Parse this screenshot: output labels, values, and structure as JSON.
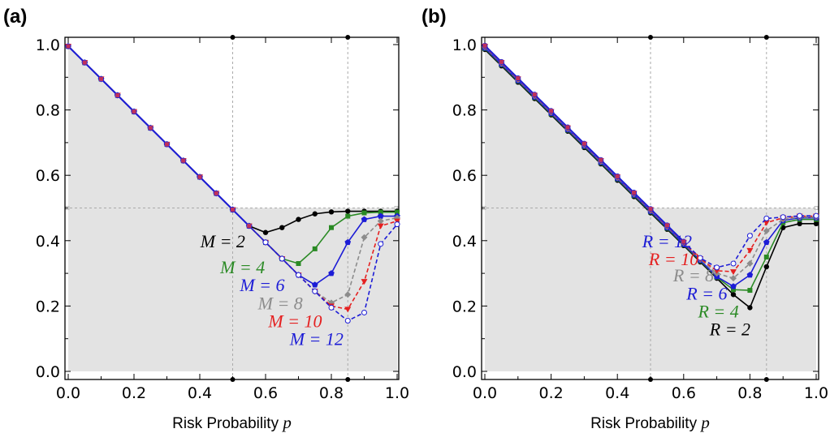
{
  "figure": {
    "panels": [
      "(a)",
      "(b)"
    ]
  },
  "chart_data": [
    {
      "type": "line",
      "panel_label": "(a)",
      "xlabel": "Risk Probability",
      "xlabel_var": "p",
      "ylabel": "",
      "xlim": [
        0,
        1
      ],
      "ylim": [
        0,
        1
      ],
      "x_ticks": [
        "0.0",
        "0.2",
        "0.4",
        "0.6",
        "0.8",
        "1.0"
      ],
      "y_ticks": [
        "0.0",
        "0.2",
        "0.4",
        "0.6",
        "0.8",
        "1.0"
      ],
      "reference_lines": {
        "vertical": [
          0.5,
          0.85
        ],
        "horizontal": [
          0.5
        ]
      },
      "shaded_region": "under y = min(1 - p, 0.5)",
      "colors": {
        "shade": "#e3e3e3",
        "frame": "#000000",
        "guide": "#aaaaaa"
      },
      "x": [
        0.0,
        0.05,
        0.1,
        0.15,
        0.2,
        0.25,
        0.3,
        0.35,
        0.4,
        0.45,
        0.5,
        0.55,
        0.6,
        0.65,
        0.7,
        0.75,
        0.8,
        0.85,
        0.9,
        0.95,
        1.0
      ],
      "series": [
        {
          "name": "M = 2",
          "color": "#000000",
          "dash": "solid",
          "marker": "circle",
          "values": [
            0.995,
            0.945,
            0.895,
            0.845,
            0.795,
            0.745,
            0.695,
            0.645,
            0.595,
            0.545,
            0.495,
            0.445,
            0.425,
            0.44,
            0.465,
            0.482,
            0.488,
            0.49,
            0.49,
            0.49,
            0.49
          ]
        },
        {
          "name": "M = 4",
          "color": "#2a8a24",
          "dash": "solid",
          "marker": "square",
          "values": [
            0.995,
            0.945,
            0.895,
            0.845,
            0.795,
            0.745,
            0.695,
            0.645,
            0.595,
            0.545,
            0.495,
            0.445,
            0.395,
            0.345,
            0.33,
            0.375,
            0.44,
            0.475,
            0.485,
            0.487,
            0.487
          ]
        },
        {
          "name": "M = 6",
          "color": "#1c1cd6",
          "dash": "solid",
          "marker": "pentagon",
          "values": [
            0.995,
            0.945,
            0.895,
            0.845,
            0.795,
            0.745,
            0.695,
            0.645,
            0.595,
            0.545,
            0.495,
            0.445,
            0.395,
            0.345,
            0.295,
            0.265,
            0.3,
            0.395,
            0.465,
            0.475,
            0.475
          ]
        },
        {
          "name": "M = 8",
          "color": "#8c8c8c",
          "dash": "dashed",
          "marker": "diamond",
          "values": [
            0.995,
            0.945,
            0.895,
            0.845,
            0.795,
            0.745,
            0.695,
            0.645,
            0.595,
            0.545,
            0.495,
            0.445,
            0.395,
            0.345,
            0.295,
            0.245,
            0.21,
            0.235,
            0.41,
            0.46,
            0.47
          ]
        },
        {
          "name": "M = 10",
          "color": "#e52020",
          "dash": "dashed",
          "marker": "triangle",
          "values": [
            0.995,
            0.945,
            0.895,
            0.845,
            0.795,
            0.745,
            0.695,
            0.645,
            0.595,
            0.545,
            0.495,
            0.445,
            0.395,
            0.345,
            0.295,
            0.245,
            0.2,
            0.19,
            0.275,
            0.445,
            0.46
          ]
        },
        {
          "name": "M = 12",
          "color": "#1c1cd6",
          "dash": "dashed",
          "marker": "open-circle",
          "values": [
            0.995,
            0.945,
            0.895,
            0.845,
            0.795,
            0.745,
            0.695,
            0.645,
            0.595,
            0.545,
            0.495,
            0.445,
            0.395,
            0.345,
            0.295,
            0.245,
            0.195,
            0.155,
            0.18,
            0.39,
            0.45
          ]
        }
      ],
      "overlay_line": {
        "color": "#1c1cd6",
        "values": [
          0.995,
          0.945,
          0.895,
          0.845,
          0.795,
          0.745,
          0.695,
          0.645,
          0.595,
          0.545,
          0.495,
          0.445
        ]
      },
      "series_labels": [
        {
          "text": "M = 2",
          "color": "#000000",
          "anchor": [
            0.47,
            0.4
          ]
        },
        {
          "text": "M = 4",
          "color": "#2a8a24",
          "anchor": [
            0.53,
            0.32
          ]
        },
        {
          "text": "M = 6",
          "color": "#1c1cd6",
          "anchor": [
            0.59,
            0.265
          ]
        },
        {
          "text": "M = 8",
          "color": "#8c8c8c",
          "anchor": [
            0.645,
            0.21
          ]
        },
        {
          "text": "M = 10",
          "color": "#e52020",
          "anchor": [
            0.69,
            0.155
          ]
        },
        {
          "text": "M = 12",
          "color": "#1c1cd6",
          "anchor": [
            0.755,
            0.1
          ]
        }
      ]
    },
    {
      "type": "line",
      "panel_label": "(b)",
      "xlabel": "Risk Probability",
      "xlabel_var": "p",
      "ylabel": "",
      "xlim": [
        0,
        1
      ],
      "ylim": [
        0,
        1
      ],
      "x_ticks": [
        "0.0",
        "0.2",
        "0.4",
        "0.6",
        "0.8",
        "1.0"
      ],
      "y_ticks": [
        "0.0",
        "0.2",
        "0.4",
        "0.6",
        "0.8",
        "1.0"
      ],
      "reference_lines": {
        "vertical": [
          0.5,
          0.85
        ],
        "horizontal": [
          0.5
        ]
      },
      "shaded_region": "under y = min(1 - p, 0.5)",
      "colors": {
        "shade": "#e3e3e3",
        "frame": "#000000",
        "guide": "#aaaaaa"
      },
      "x": [
        0.0,
        0.05,
        0.1,
        0.15,
        0.2,
        0.25,
        0.3,
        0.35,
        0.4,
        0.45,
        0.5,
        0.55,
        0.6,
        0.65,
        0.7,
        0.75,
        0.8,
        0.85,
        0.9,
        0.95,
        1.0
      ],
      "series": [
        {
          "name": "R = 2",
          "color": "#000000",
          "dash": "solid",
          "marker": "circle",
          "values": [
            0.985,
            0.935,
            0.885,
            0.835,
            0.785,
            0.735,
            0.685,
            0.635,
            0.585,
            0.535,
            0.485,
            0.435,
            0.385,
            0.335,
            0.285,
            0.235,
            0.195,
            0.32,
            0.44,
            0.452,
            0.452
          ]
        },
        {
          "name": "R = 4",
          "color": "#2a8a24",
          "dash": "solid",
          "marker": "square",
          "values": [
            0.988,
            0.938,
            0.888,
            0.838,
            0.788,
            0.738,
            0.688,
            0.638,
            0.588,
            0.538,
            0.488,
            0.438,
            0.388,
            0.338,
            0.288,
            0.25,
            0.248,
            0.35,
            0.455,
            0.465,
            0.465
          ]
        },
        {
          "name": "R = 6",
          "color": "#1c1cd6",
          "dash": "solid",
          "marker": "pentagon",
          "values": [
            0.99,
            0.94,
            0.89,
            0.84,
            0.79,
            0.74,
            0.69,
            0.64,
            0.59,
            0.54,
            0.49,
            0.44,
            0.39,
            0.34,
            0.29,
            0.26,
            0.295,
            0.395,
            0.462,
            0.47,
            0.47
          ]
        },
        {
          "name": "R = 8",
          "color": "#8c8c8c",
          "dash": "dashed",
          "marker": "diamond",
          "values": [
            0.993,
            0.943,
            0.893,
            0.843,
            0.793,
            0.743,
            0.693,
            0.643,
            0.593,
            0.543,
            0.493,
            0.443,
            0.393,
            0.343,
            0.3,
            0.285,
            0.33,
            0.43,
            0.465,
            0.472,
            0.472
          ]
        },
        {
          "name": "R = 10",
          "color": "#e52020",
          "dash": "dashed",
          "marker": "triangle",
          "values": [
            0.995,
            0.945,
            0.895,
            0.845,
            0.795,
            0.745,
            0.695,
            0.645,
            0.595,
            0.545,
            0.495,
            0.445,
            0.395,
            0.345,
            0.308,
            0.305,
            0.37,
            0.455,
            0.47,
            0.475,
            0.475
          ]
        },
        {
          "name": "R = 12",
          "color": "#1c1cd6",
          "dash": "dashed",
          "marker": "open-circle",
          "values": [
            0.997,
            0.947,
            0.897,
            0.847,
            0.797,
            0.747,
            0.697,
            0.647,
            0.597,
            0.547,
            0.497,
            0.447,
            0.397,
            0.347,
            0.318,
            0.33,
            0.415,
            0.468,
            0.472,
            0.476,
            0.476
          ]
        }
      ],
      "overlay_line": {
        "color": "#1c1cd6",
        "values": [
          0.997,
          0.947,
          0.897,
          0.847,
          0.797,
          0.747,
          0.697,
          0.647,
          0.597,
          0.547,
          0.497,
          0.447,
          0.397
        ]
      },
      "series_labels": [
        {
          "text": "R = 12",
          "color": "#1c1cd6",
          "anchor": [
            0.55,
            0.4
          ]
        },
        {
          "text": "R = 10",
          "color": "#e52020",
          "anchor": [
            0.57,
            0.345
          ]
        },
        {
          "text": "R = 8",
          "color": "#8c8c8c",
          "anchor": [
            0.63,
            0.295
          ]
        },
        {
          "text": "R = 6",
          "color": "#1c1cd6",
          "anchor": [
            0.67,
            0.24
          ]
        },
        {
          "text": "R = 4",
          "color": "#2a8a24",
          "anchor": [
            0.705,
            0.185
          ]
        },
        {
          "text": "R = 2",
          "color": "#000000",
          "anchor": [
            0.74,
            0.13
          ]
        }
      ]
    }
  ]
}
